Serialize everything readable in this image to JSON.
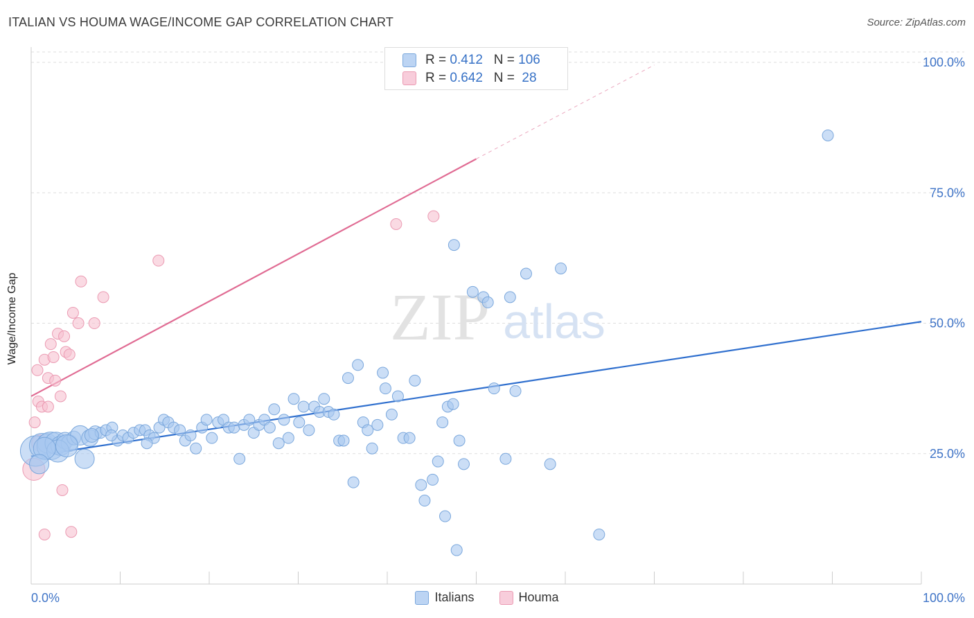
{
  "title": "ITALIAN VS HOUMA WAGE/INCOME GAP CORRELATION CHART",
  "source": "Source: ZipAtlas.com",
  "watermark": {
    "part1": "ZIP",
    "part2": "atlas"
  },
  "colors": {
    "italians_fill": "#a9c8f0",
    "italians_stroke": "#7aa7dc",
    "italians_line": "#2f6fce",
    "houma_fill": "#f6c1d0",
    "houma_stroke": "#eb9ab2",
    "houma_line": "#e06b93",
    "axis_text": "#3f74c7"
  },
  "stats_box": {
    "rows": [
      {
        "r_label": "R = ",
        "r_value": "0.412",
        "n_label": "N = ",
        "n_value": "106"
      },
      {
        "r_label": "R = ",
        "r_value": "0.642",
        "n_label": "N = ",
        "n_value": " 28"
      }
    ]
  },
  "legend": {
    "italians": "Italians",
    "houma": "Houma"
  },
  "chart_data": {
    "type": "scatter",
    "ylabel": "Wage/Income Gap",
    "xlabel": "",
    "xlim": [
      0,
      100
    ],
    "ylim": [
      0,
      102
    ],
    "x_tick_labels": [
      "0.0%",
      "100.0%"
    ],
    "y_ticks": [
      25,
      50,
      75,
      100
    ],
    "y_tick_labels": [
      "25.0%",
      "50.0%",
      "75.0%",
      "100.0%"
    ],
    "grid": "horizontal dashed",
    "series": [
      {
        "name": "Italians",
        "trend": {
          "x0": 0,
          "y0": 24.5,
          "x1": 100,
          "y1": 50.3
        },
        "points": [
          [
            0.5,
            25.5,
            22
          ],
          [
            1.2,
            26.5,
            18
          ],
          [
            1.8,
            27,
            14
          ],
          [
            2.2,
            26.5,
            20
          ],
          [
            2.8,
            27,
            16
          ],
          [
            3.3,
            26.5,
            14
          ],
          [
            3.8,
            27.5,
            12
          ],
          [
            4.3,
            27,
            12
          ],
          [
            4.8,
            28,
            10
          ],
          [
            5.5,
            28.5,
            14
          ],
          [
            6,
            24,
            14
          ],
          [
            6.6,
            28,
            12
          ],
          [
            7.2,
            29,
            10
          ],
          [
            7.8,
            29,
            8
          ],
          [
            8.4,
            29.5,
            8
          ],
          [
            9.1,
            30,
            8
          ],
          [
            9.7,
            27.5,
            8
          ],
          [
            10.3,
            28.5,
            8
          ],
          [
            10.9,
            28,
            8
          ],
          [
            11.5,
            29,
            8
          ],
          [
            12.2,
            29.5,
            8
          ],
          [
            12.8,
            29.5,
            8
          ],
          [
            13.3,
            28.5,
            8
          ],
          [
            13.8,
            28,
            8
          ],
          [
            14.4,
            30,
            8
          ],
          [
            14.9,
            31.5,
            8
          ],
          [
            15.4,
            31,
            8
          ],
          [
            16,
            30,
            8
          ],
          [
            16.7,
            29.5,
            8
          ],
          [
            17.3,
            27.5,
            8
          ],
          [
            17.9,
            28.5,
            8
          ],
          [
            18.5,
            26,
            8
          ],
          [
            19.2,
            30,
            8
          ],
          [
            19.7,
            31.5,
            8
          ],
          [
            20.3,
            28,
            8
          ],
          [
            21,
            31,
            8
          ],
          [
            21.6,
            31.5,
            8
          ],
          [
            22.2,
            30,
            8
          ],
          [
            22.8,
            30,
            8
          ],
          [
            23.4,
            24,
            8
          ],
          [
            23.9,
            30.5,
            8
          ],
          [
            24.5,
            31.5,
            8
          ],
          [
            25,
            29,
            8
          ],
          [
            25.6,
            30.5,
            8
          ],
          [
            26.2,
            31.5,
            8
          ],
          [
            26.8,
            30,
            8
          ],
          [
            27.3,
            33.5,
            8
          ],
          [
            27.8,
            27,
            8
          ],
          [
            28.4,
            31.5,
            8
          ],
          [
            28.9,
            28,
            8
          ],
          [
            29.5,
            35.5,
            8
          ],
          [
            30.1,
            31,
            8
          ],
          [
            30.6,
            34,
            8
          ],
          [
            31.2,
            29.5,
            8
          ],
          [
            31.8,
            34,
            8
          ],
          [
            32.4,
            33,
            8
          ],
          [
            32.9,
            35.5,
            8
          ],
          [
            33.4,
            33,
            8
          ],
          [
            34,
            32.5,
            8
          ],
          [
            34.6,
            27.5,
            8
          ],
          [
            35.1,
            27.5,
            8
          ],
          [
            35.6,
            39.5,
            8
          ],
          [
            36.2,
            19.5,
            8
          ],
          [
            36.7,
            42,
            8
          ],
          [
            37.3,
            31,
            8
          ],
          [
            37.8,
            29.5,
            8
          ],
          [
            38.3,
            26,
            8
          ],
          [
            38.9,
            30.5,
            8
          ],
          [
            39.5,
            40.5,
            8
          ],
          [
            39.8,
            37.5,
            8
          ],
          [
            40.5,
            32.5,
            8
          ],
          [
            41.2,
            36,
            8
          ],
          [
            41.8,
            28,
            8
          ],
          [
            42.5,
            28,
            8
          ],
          [
            43.1,
            39,
            8
          ],
          [
            43.8,
            19,
            8
          ],
          [
            44.2,
            16,
            8
          ],
          [
            45.1,
            20,
            8
          ],
          [
            45.7,
            23.5,
            8
          ],
          [
            46.2,
            31,
            8
          ],
          [
            46.8,
            34,
            8
          ],
          [
            47.4,
            34.5,
            8
          ],
          [
            48.1,
            27.5,
            8
          ],
          [
            48.6,
            23,
            8
          ],
          [
            49.6,
            56,
            8
          ],
          [
            50.8,
            55,
            8
          ],
          [
            51.3,
            54,
            8
          ],
          [
            52,
            37.5,
            8
          ],
          [
            53.3,
            24,
            8
          ],
          [
            53.8,
            55,
            8
          ],
          [
            54.4,
            37,
            8
          ],
          [
            55.6,
            59.5,
            8
          ],
          [
            58.3,
            23,
            8
          ],
          [
            59.5,
            60.5,
            8
          ],
          [
            46.5,
            13,
            8
          ],
          [
            47.5,
            65,
            8
          ],
          [
            47.8,
            6.5,
            8
          ],
          [
            63.8,
            9.5,
            8
          ],
          [
            89.5,
            86,
            8
          ],
          [
            13,
            27,
            8
          ],
          [
            3,
            25.5,
            16
          ],
          [
            1.5,
            26,
            16
          ],
          [
            4,
            26.5,
            16
          ],
          [
            0.9,
            23,
            14
          ],
          [
            6.8,
            28.5,
            10
          ],
          [
            9,
            28.5,
            8
          ]
        ]
      },
      {
        "name": "Houma",
        "trend": {
          "x0": 0,
          "y0": 36,
          "x1": 50,
          "y1": 81.5,
          "dash_x1": 70,
          "dash_y1": 99.5
        },
        "points": [
          [
            0.3,
            22,
            16
          ],
          [
            0.4,
            31,
            8
          ],
          [
            0.7,
            41,
            8
          ],
          [
            0.8,
            35,
            8
          ],
          [
            1,
            27,
            12
          ],
          [
            1.2,
            34,
            8
          ],
          [
            1.5,
            9.5,
            8
          ],
          [
            1.5,
            43,
            8
          ],
          [
            1.9,
            39.5,
            8
          ],
          [
            1.9,
            34,
            8
          ],
          [
            2.2,
            46,
            8
          ],
          [
            2.5,
            43.5,
            8
          ],
          [
            2.7,
            39,
            8
          ],
          [
            3,
            48,
            8
          ],
          [
            3.3,
            36,
            8
          ],
          [
            3.5,
            18,
            8
          ],
          [
            3.7,
            47.5,
            8
          ],
          [
            3.9,
            44.5,
            8
          ],
          [
            4.3,
            44,
            8
          ],
          [
            4.5,
            10,
            8
          ],
          [
            4.7,
            52,
            8
          ],
          [
            5.3,
            50,
            8
          ],
          [
            5.6,
            58,
            8
          ],
          [
            7.1,
            50,
            8
          ],
          [
            8.1,
            55,
            8
          ],
          [
            14.3,
            62,
            8
          ],
          [
            41,
            69,
            8
          ],
          [
            45.2,
            70.5,
            8
          ]
        ]
      }
    ]
  }
}
